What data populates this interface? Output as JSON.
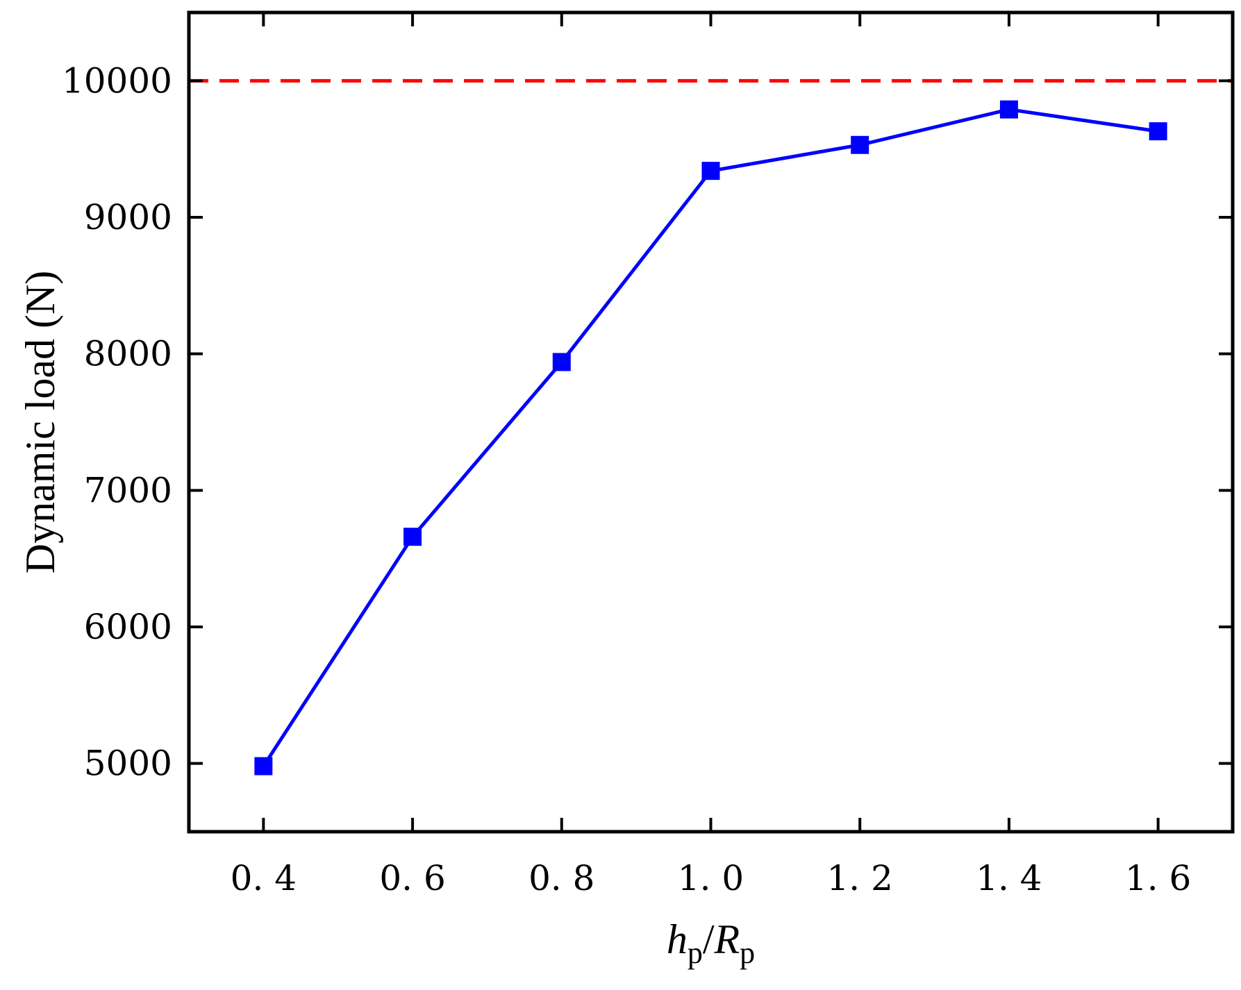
{
  "chart_data": {
    "type": "line",
    "title": "",
    "xlabel": {
      "h": "h",
      "h_sub": "p",
      "slash": "/",
      "r": "R",
      "r_sub": "p"
    },
    "ylabel": "Dynamic load (N)",
    "xlim": [
      0.3,
      1.7
    ],
    "ylim": [
      4500,
      10500
    ],
    "x_ticks": [
      0.4,
      0.6,
      0.8,
      1.0,
      1.2,
      1.4,
      1.6
    ],
    "x_tick_labels": [
      "0. 4",
      "0. 6",
      "0. 8",
      "1. 0",
      "1. 2",
      "1. 4",
      "1. 6"
    ],
    "y_ticks": [
      5000,
      6000,
      7000,
      8000,
      9000,
      10000
    ],
    "y_tick_labels": [
      "5000",
      "6000",
      "7000",
      "8000",
      "9000",
      "10000"
    ],
    "grid": false,
    "series": [
      {
        "x": [
          0.4,
          0.6,
          0.8,
          1.0,
          1.2,
          1.4,
          1.6
        ],
        "values": [
          4980,
          6660,
          7940,
          9340,
          9530,
          9790,
          9630
        ],
        "color": "#0000ff",
        "marker": "square"
      }
    ],
    "reference_lines": [
      {
        "axis": "y",
        "value": 10000,
        "color": "#ff0000",
        "style": "dashed"
      }
    ]
  }
}
